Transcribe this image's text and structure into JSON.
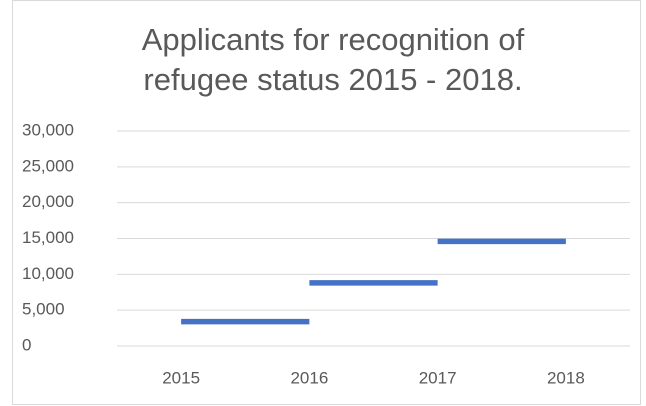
{
  "chart_data": {
    "type": "line",
    "title": "Applicants for recognition of refugee status 2015 - 2018.",
    "categories": [
      "2015",
      "2016",
      "2017",
      "2018"
    ],
    "series": [
      {
        "color": "#4472c4",
        "values": [
          3400,
          3400,
          null,
          null
        ]
      },
      {
        "color": "#4472c4",
        "values": [
          null,
          8800,
          8800,
          null
        ]
      },
      {
        "color": "#4472c4",
        "values": [
          null,
          null,
          14600,
          14600
        ]
      }
    ],
    "ylim": [
      0,
      30000
    ],
    "yticks": [
      {
        "value": 0,
        "label": "0"
      },
      {
        "value": 5000,
        "label": "5,000"
      },
      {
        "value": 10000,
        "label": "10,000"
      },
      {
        "value": 15000,
        "label": "15,000"
      },
      {
        "value": 20000,
        "label": "20,000"
      },
      {
        "value": 25000,
        "label": "25,000"
      },
      {
        "value": 30000,
        "label": "30,000"
      }
    ],
    "grid": true
  }
}
